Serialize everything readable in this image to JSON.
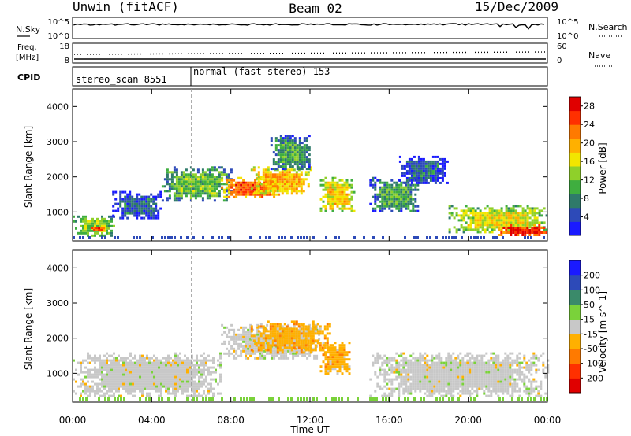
{
  "header": {
    "station": "Unwin (fitACF)",
    "beam": "Beam 02",
    "date": "15/Dec/2009"
  },
  "nsky_panel": {
    "left_label": "N.Sky",
    "left_ticks": [
      "10^5",
      "10^0"
    ],
    "right_label": "N.Search",
    "right_ticks": [
      "10^5",
      "10^0"
    ]
  },
  "freq_panel": {
    "left_label_1": "Freq.",
    "left_label_2": "[MHz]",
    "left_ticks": [
      "18",
      "8"
    ],
    "right_label": "Nave",
    "right_ticks": [
      "60",
      "0"
    ]
  },
  "cpid_panel": {
    "label": "CPID",
    "modes": [
      {
        "text": "stereo_scan 8551",
        "start_hour": 0
      },
      {
        "text": "normal (fast stereo) 153",
        "start_hour": 6
      }
    ]
  },
  "chart_data": [
    {
      "type": "heatmap",
      "name": "power",
      "ylabel": "Slant Range [km]",
      "xlabel": "",
      "x_ticks": [
        "00:00",
        "04:00",
        "08:00",
        "12:00",
        "16:00",
        "20:00",
        "00:00"
      ],
      "xlim_hours": [
        0,
        24
      ],
      "y_ticks": [
        "1000",
        "2000",
        "3000",
        "4000"
      ],
      "ylim_km": [
        180,
        4500
      ],
      "colorbar": {
        "label": "Power [dB]",
        "ticks": [
          "4",
          "8",
          "12",
          "16",
          "20",
          "24",
          "28"
        ],
        "range": [
          0,
          30
        ],
        "colors": [
          "#1a1aff",
          "#2d4ab8",
          "#2f7a6a",
          "#3fae3f",
          "#8fd02a",
          "#f2e600",
          "#ffb000",
          "#ff7a00",
          "#ff3000",
          "#e00000"
        ]
      },
      "regions": [
        {
          "t0": 0.0,
          "t1": 2.2,
          "r0": 350,
          "r1": 900,
          "level": 14
        },
        {
          "t0": 0.8,
          "t1": 1.6,
          "r0": 450,
          "r1": 650,
          "level": 24
        },
        {
          "t0": 2.0,
          "t1": 4.5,
          "r0": 800,
          "r1": 1600,
          "level": 6
        },
        {
          "t0": 4.5,
          "t1": 8.0,
          "r0": 1300,
          "r1": 2300,
          "level": 12
        },
        {
          "t0": 7.5,
          "t1": 10.5,
          "r0": 1400,
          "r1": 2000,
          "level": 24
        },
        {
          "t0": 9.0,
          "t1": 12.0,
          "r0": 1500,
          "r1": 2300,
          "level": 20
        },
        {
          "t0": 10.0,
          "t1": 12.0,
          "r0": 2200,
          "r1": 3200,
          "level": 10
        },
        {
          "t0": 12.5,
          "t1": 14.2,
          "r0": 1000,
          "r1": 2000,
          "level": 18
        },
        {
          "t0": 15.0,
          "t1": 17.5,
          "r0": 1000,
          "r1": 2000,
          "level": 10
        },
        {
          "t0": 16.5,
          "t1": 19.0,
          "r0": 1800,
          "r1": 2600,
          "level": 6
        },
        {
          "t0": 19.0,
          "t1": 24.0,
          "r0": 400,
          "r1": 1200,
          "level": 16
        },
        {
          "t0": 21.5,
          "t1": 24.0,
          "r0": 350,
          "r1": 650,
          "level": 28
        }
      ]
    },
    {
      "type": "heatmap",
      "name": "velocity",
      "ylabel": "Slant Range [km]",
      "xlabel": "Time UT",
      "x_ticks": [
        "00:00",
        "04:00",
        "08:00",
        "12:00",
        "16:00",
        "20:00",
        "00:00"
      ],
      "xlim_hours": [
        0,
        24
      ],
      "y_ticks": [
        "1000",
        "2000",
        "3000",
        "4000"
      ],
      "ylim_km": [
        180,
        4500
      ],
      "colorbar": {
        "label": "Velocity [m s^-1]",
        "ticks": [
          "200",
          "100",
          "50",
          "15",
          "-15",
          "-50",
          "-100",
          "-200"
        ],
        "colors": [
          "#1a1aff",
          "#2d4ab8",
          "#3a8a6a",
          "#7ad23a",
          "#c8c8c8",
          "#ffb000",
          "#ff7a00",
          "#ff3000",
          "#e00000"
        ]
      },
      "regions": [
        {
          "t0": 0.0,
          "t1": 7.5,
          "r0": 350,
          "r1": 1600,
          "class": "low"
        },
        {
          "t0": 7.5,
          "t1": 12.5,
          "r0": 1400,
          "r1": 2400,
          "class": "low"
        },
        {
          "t0": 9.0,
          "t1": 13.0,
          "r0": 1600,
          "r1": 2500,
          "class": "negative"
        },
        {
          "t0": 12.5,
          "t1": 14.0,
          "r0": 1000,
          "r1": 1900,
          "class": "negative"
        },
        {
          "t0": 15.0,
          "t1": 24.0,
          "r0": 350,
          "r1": 1600,
          "class": "low"
        }
      ]
    }
  ]
}
